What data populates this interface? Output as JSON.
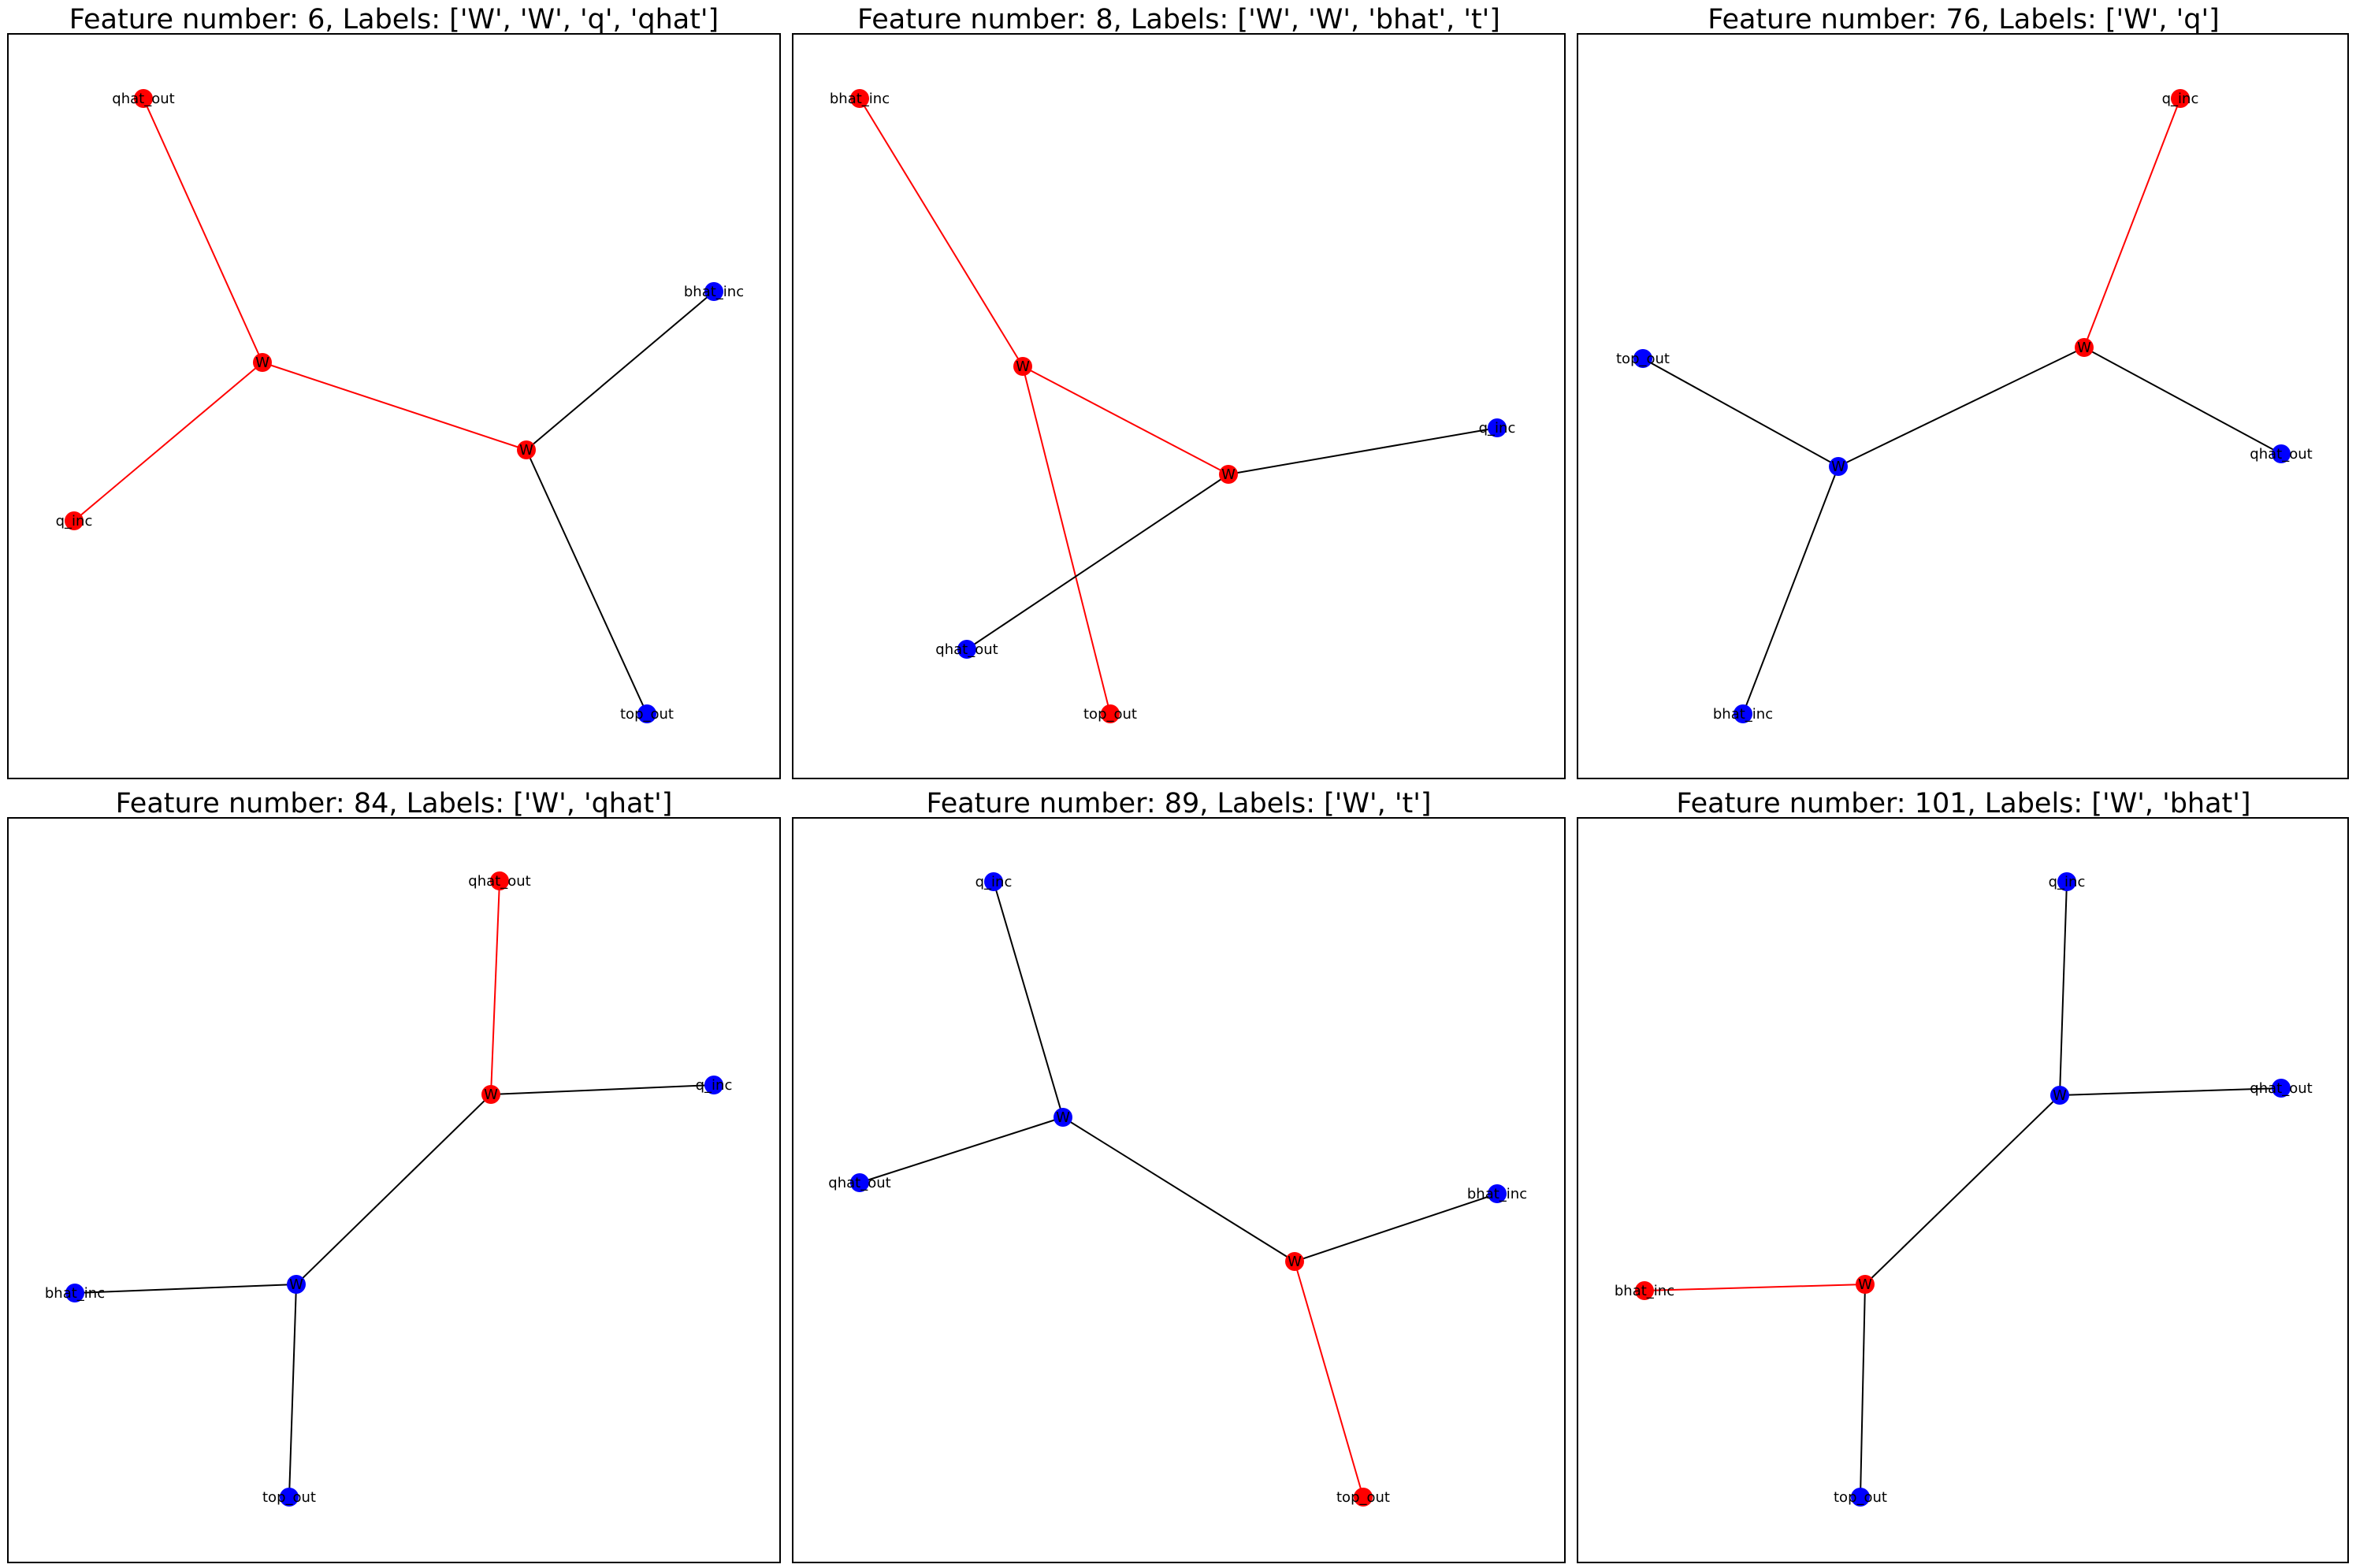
{
  "colors": {
    "highlight": "#ff0000",
    "normal_node": "#0000ff",
    "normal_edge": "#000000"
  },
  "chart_data": [
    {
      "type": "graph",
      "title": "Feature number: 6, Labels: ['W', 'W', 'q', 'qhat']",
      "nodes": [
        {
          "id": "qhat_out",
          "label": "qhat_out",
          "highlight": true
        },
        {
          "id": "W1",
          "label": "W",
          "highlight": true
        },
        {
          "id": "q_inc",
          "label": "q_inc",
          "highlight": true
        },
        {
          "id": "W2",
          "label": "W",
          "highlight": true
        },
        {
          "id": "bhat_inc",
          "label": "bhat_inc",
          "highlight": false
        },
        {
          "id": "top_out",
          "label": "top_out",
          "highlight": false
        }
      ],
      "edges": [
        {
          "source": "qhat_out",
          "target": "W1",
          "highlight": true
        },
        {
          "source": "W1",
          "target": "q_inc",
          "highlight": true
        },
        {
          "source": "W1",
          "target": "W2",
          "highlight": true
        },
        {
          "source": "W2",
          "target": "bhat_inc",
          "highlight": false
        },
        {
          "source": "W2",
          "target": "top_out",
          "highlight": false
        }
      ]
    },
    {
      "type": "graph",
      "title": "Feature number: 8, Labels: ['W', 'W', 'bhat', 't']",
      "nodes": [
        {
          "id": "bhat_inc",
          "label": "bhat_inc",
          "highlight": true
        },
        {
          "id": "W1",
          "label": "W",
          "highlight": true
        },
        {
          "id": "W2",
          "label": "W",
          "highlight": true
        },
        {
          "id": "q_inc",
          "label": "q_inc",
          "highlight": false
        },
        {
          "id": "qhat_out",
          "label": "qhat_out",
          "highlight": false
        },
        {
          "id": "top_out",
          "label": "top_out",
          "highlight": true
        }
      ],
      "edges": [
        {
          "source": "bhat_inc",
          "target": "W1",
          "highlight": true
        },
        {
          "source": "W1",
          "target": "W2",
          "highlight": true
        },
        {
          "source": "W1",
          "target": "top_out",
          "highlight": true
        },
        {
          "source": "W2",
          "target": "q_inc",
          "highlight": false
        },
        {
          "source": "W2",
          "target": "qhat_out",
          "highlight": false
        }
      ]
    },
    {
      "type": "graph",
      "title": "Feature number: 76, Labels: ['W', 'q']",
      "nodes": [
        {
          "id": "q_inc",
          "label": "q_inc",
          "highlight": true
        },
        {
          "id": "W1",
          "label": "W",
          "highlight": true
        },
        {
          "id": "top_out",
          "label": "top_out",
          "highlight": false
        },
        {
          "id": "W2",
          "label": "W",
          "highlight": false
        },
        {
          "id": "qhat_out",
          "label": "qhat_out",
          "highlight": false
        },
        {
          "id": "bhat_inc",
          "label": "bhat_inc",
          "highlight": false
        }
      ],
      "edges": [
        {
          "source": "q_inc",
          "target": "W1",
          "highlight": true
        },
        {
          "source": "W1",
          "target": "W2",
          "highlight": false
        },
        {
          "source": "W1",
          "target": "qhat_out",
          "highlight": false
        },
        {
          "source": "top_out",
          "target": "W2",
          "highlight": false
        },
        {
          "source": "W2",
          "target": "bhat_inc",
          "highlight": false
        }
      ]
    },
    {
      "type": "graph",
      "title": "Feature number: 84, Labels: ['W', 'qhat']",
      "nodes": [
        {
          "id": "qhat_out",
          "label": "qhat_out",
          "highlight": true
        },
        {
          "id": "W1",
          "label": "W",
          "highlight": true
        },
        {
          "id": "q_inc",
          "label": "q_inc",
          "highlight": false
        },
        {
          "id": "W2",
          "label": "W",
          "highlight": false
        },
        {
          "id": "bhat_inc",
          "label": "bhat_inc",
          "highlight": false
        },
        {
          "id": "top_out",
          "label": "top_out",
          "highlight": false
        }
      ],
      "edges": [
        {
          "source": "qhat_out",
          "target": "W1",
          "highlight": true
        },
        {
          "source": "W1",
          "target": "q_inc",
          "highlight": false
        },
        {
          "source": "W1",
          "target": "W2",
          "highlight": false
        },
        {
          "source": "W2",
          "target": "bhat_inc",
          "highlight": false
        },
        {
          "source": "W2",
          "target": "top_out",
          "highlight": false
        }
      ]
    },
    {
      "type": "graph",
      "title": "Feature number: 89, Labels: ['W', 't']",
      "nodes": [
        {
          "id": "q_inc",
          "label": "q_inc",
          "highlight": false
        },
        {
          "id": "W1",
          "label": "W",
          "highlight": false
        },
        {
          "id": "qhat_out",
          "label": "qhat_out",
          "highlight": false
        },
        {
          "id": "W2",
          "label": "W",
          "highlight": true
        },
        {
          "id": "bhat_inc",
          "label": "bhat_inc",
          "highlight": false
        },
        {
          "id": "top_out",
          "label": "top_out",
          "highlight": true
        }
      ],
      "edges": [
        {
          "source": "q_inc",
          "target": "W1",
          "highlight": false
        },
        {
          "source": "W1",
          "target": "qhat_out",
          "highlight": false
        },
        {
          "source": "W1",
          "target": "W2",
          "highlight": false
        },
        {
          "source": "W2",
          "target": "bhat_inc",
          "highlight": false
        },
        {
          "source": "W2",
          "target": "top_out",
          "highlight": true
        }
      ]
    },
    {
      "type": "graph",
      "title": "Feature number: 101, Labels: ['W', 'bhat']",
      "nodes": [
        {
          "id": "q_inc",
          "label": "q_inc",
          "highlight": false
        },
        {
          "id": "W1",
          "label": "W",
          "highlight": false
        },
        {
          "id": "qhat_out",
          "label": "qhat_out",
          "highlight": false
        },
        {
          "id": "W2",
          "label": "W",
          "highlight": true
        },
        {
          "id": "bhat_inc",
          "label": "bhat_inc",
          "highlight": true
        },
        {
          "id": "top_out",
          "label": "top_out",
          "highlight": false
        }
      ],
      "edges": [
        {
          "source": "q_inc",
          "target": "W1",
          "highlight": false
        },
        {
          "source": "W1",
          "target": "qhat_out",
          "highlight": false
        },
        {
          "source": "W1",
          "target": "W2",
          "highlight": false
        },
        {
          "source": "W2",
          "target": "bhat_inc",
          "highlight": true
        },
        {
          "source": "W2",
          "target": "top_out",
          "highlight": false
        }
      ]
    }
  ]
}
